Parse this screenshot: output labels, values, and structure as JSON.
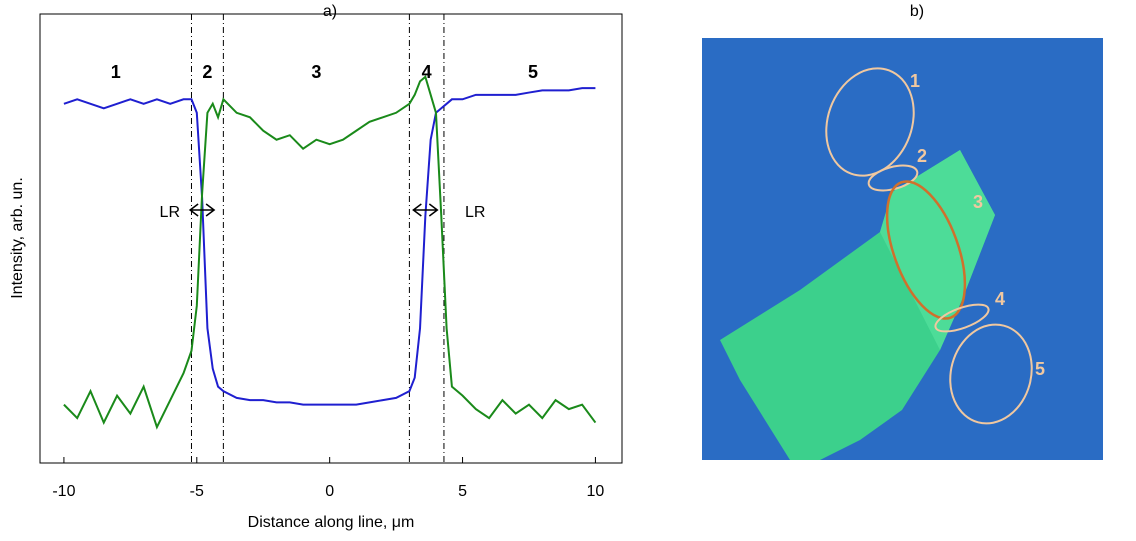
{
  "chart_data": {
    "type": "line",
    "title": "a)",
    "xlabel": "Distance along line, μm",
    "ylabel": "Intensity, arb. un.",
    "x": [
      -10,
      -9.5,
      -9,
      -8.5,
      -8,
      -7.5,
      -7,
      -6.5,
      -6,
      -5.5,
      -5.2,
      -5,
      -4.8,
      -4.6,
      -4.4,
      -4.2,
      -4,
      -3.5,
      -3,
      -2.5,
      -2,
      -1.5,
      -1,
      -0.5,
      0,
      0.5,
      1,
      1.5,
      2,
      2.5,
      3,
      3.2,
      3.4,
      3.6,
      3.8,
      4,
      4.2,
      4.4,
      4.6,
      5,
      5.5,
      6,
      6.5,
      7,
      7.5,
      8,
      8.5,
      9,
      9.5,
      10
    ],
    "series": [
      {
        "color": "#1f1fd0",
        "values": [
          0.8,
          0.81,
          0.8,
          0.79,
          0.8,
          0.81,
          0.8,
          0.81,
          0.8,
          0.81,
          0.81,
          0.78,
          0.59,
          0.3,
          0.21,
          0.17,
          0.16,
          0.145,
          0.14,
          0.14,
          0.135,
          0.135,
          0.13,
          0.13,
          0.13,
          0.13,
          0.13,
          0.135,
          0.14,
          0.145,
          0.16,
          0.19,
          0.3,
          0.55,
          0.72,
          0.78,
          0.79,
          0.8,
          0.81,
          0.81,
          0.82,
          0.82,
          0.82,
          0.82,
          0.825,
          0.83,
          0.83,
          0.83,
          0.835,
          0.835
        ]
      },
      {
        "color": "#1a8a1a",
        "values": [
          0.13,
          0.1,
          0.16,
          0.09,
          0.15,
          0.11,
          0.17,
          0.08,
          0.14,
          0.2,
          0.25,
          0.35,
          0.6,
          0.78,
          0.8,
          0.77,
          0.81,
          0.78,
          0.77,
          0.74,
          0.72,
          0.73,
          0.7,
          0.72,
          0.71,
          0.72,
          0.74,
          0.76,
          0.77,
          0.78,
          0.8,
          0.82,
          0.85,
          0.86,
          0.82,
          0.78,
          0.55,
          0.3,
          0.17,
          0.15,
          0.12,
          0.1,
          0.14,
          0.11,
          0.13,
          0.1,
          0.14,
          0.12,
          0.13,
          0.09
        ]
      }
    ],
    "xlim": [
      -10.9,
      11
    ],
    "ylim": [
      0,
      1
    ],
    "xticks": [
      -10,
      -5,
      0,
      5,
      10
    ],
    "vlines": [
      -5.2,
      -4,
      3,
      4.3
    ],
    "regions": [
      "1",
      "2",
      "3",
      "4",
      "5"
    ],
    "lr_labels": [
      "LR",
      "LR"
    ]
  },
  "image": {
    "title": "b)",
    "labels": [
      "1",
      "2",
      "3",
      "4",
      "5"
    ]
  }
}
